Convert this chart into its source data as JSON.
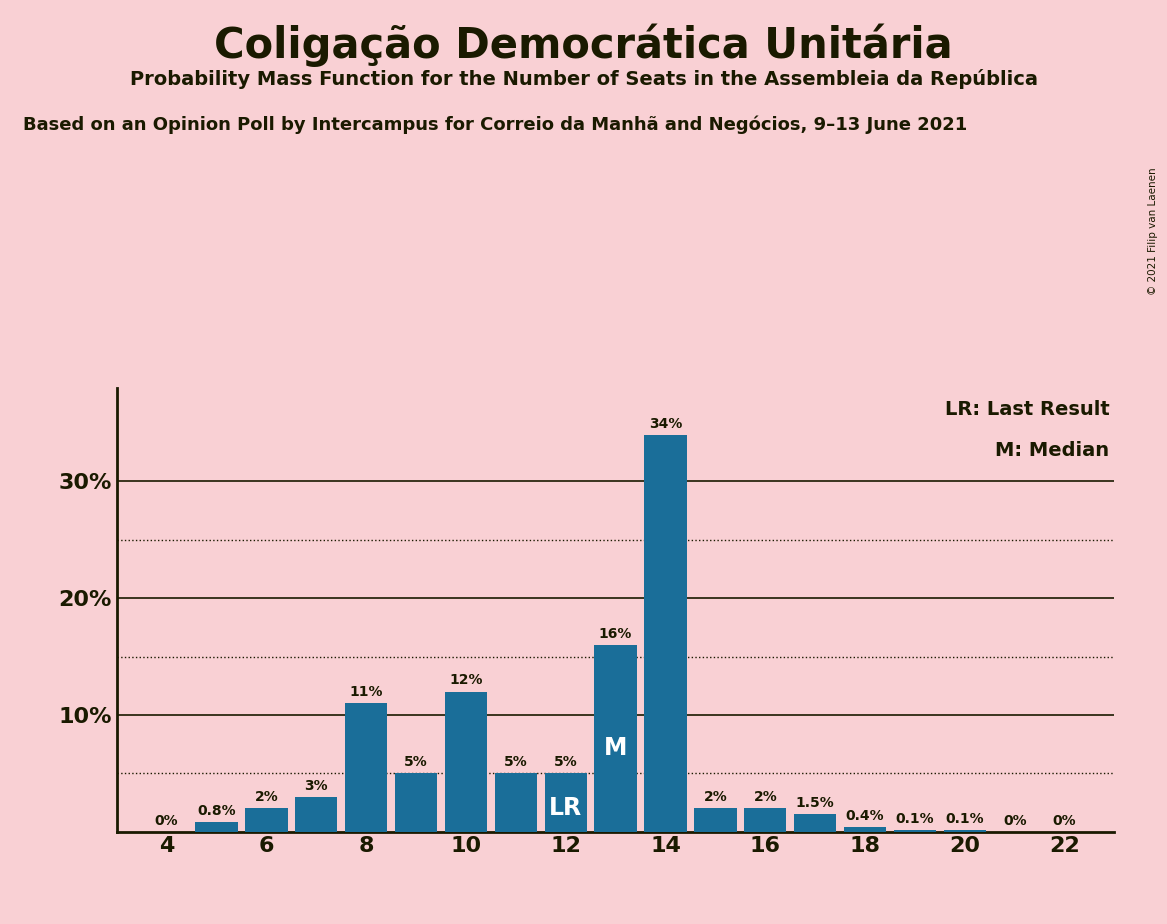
{
  "title": "Coligação Democrática Unitária",
  "subtitle1": "Probability Mass Function for the Number of Seats in the Assembleia da República",
  "subtitle2": "Based on an Opinion Poll by Intercampus for Correio da Manhã and Negócios, 9–13 June 2021",
  "copyright": "© 2021 Filip van Laenen",
  "seats": [
    4,
    5,
    6,
    7,
    8,
    9,
    10,
    11,
    12,
    13,
    14,
    15,
    16,
    17,
    18,
    19,
    20,
    21,
    22
  ],
  "probabilities": [
    0.0,
    0.8,
    2.0,
    3.0,
    11.0,
    5.0,
    12.0,
    5.0,
    5.0,
    16.0,
    34.0,
    2.0,
    2.0,
    1.5,
    0.4,
    0.1,
    0.1,
    0.0,
    0.0
  ],
  "labels": [
    "0%",
    "0.8%",
    "2%",
    "3%",
    "11%",
    "5%",
    "12%",
    "5%",
    "5%",
    "16%",
    "34%",
    "2%",
    "2%",
    "1.5%",
    "0.4%",
    "0.1%",
    "0.1%",
    "0%",
    "0%"
  ],
  "bar_color": "#1a6e99",
  "background_color": "#f9d0d4",
  "text_color": "#1a1a00",
  "lr_seat": 12,
  "median_seat": 13,
  "yticks": [
    10,
    20,
    30
  ],
  "ytick_labels": [
    "10%",
    "20%",
    "30%"
  ],
  "grid_lines_dotted": [
    5,
    15,
    25
  ],
  "ylim": [
    0,
    38
  ],
  "legend_lr": "LR: Last Result",
  "legend_m": "M: Median"
}
